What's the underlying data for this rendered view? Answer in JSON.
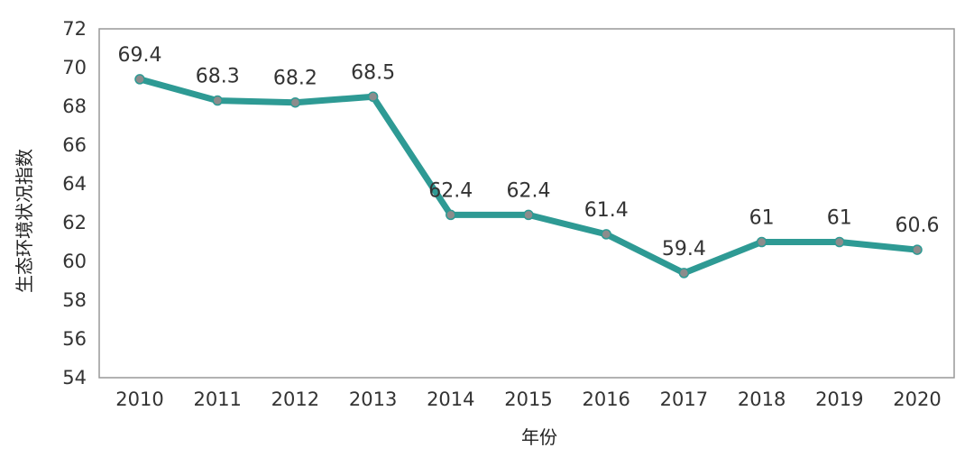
{
  "chart_data": {
    "type": "line",
    "x": [
      "2010",
      "2011",
      "2012",
      "2013",
      "2014",
      "2015",
      "2016",
      "2017",
      "2018",
      "2019",
      "2020"
    ],
    "series": [
      {
        "values": [
          69.4,
          68.3,
          68.2,
          68.5,
          62.4,
          62.4,
          61.4,
          59.4,
          61,
          61,
          60.6
        ],
        "labels": [
          "69.4",
          "68.3",
          "68.2",
          "68.5",
          "62.4",
          "62.4",
          "61.4",
          "59.4",
          "61",
          "61",
          "60.6"
        ],
        "color": "#2e9a94",
        "marker_color": "#8c8c8c"
      }
    ],
    "xlabel": "年份",
    "ylabel": "生态环境状况指数",
    "ylim": [
      54,
      72
    ],
    "yticks": [
      "54",
      "56",
      "58",
      "60",
      "62",
      "64",
      "66",
      "68",
      "70",
      "72"
    ],
    "grid": false,
    "frame_color": "#999999"
  }
}
